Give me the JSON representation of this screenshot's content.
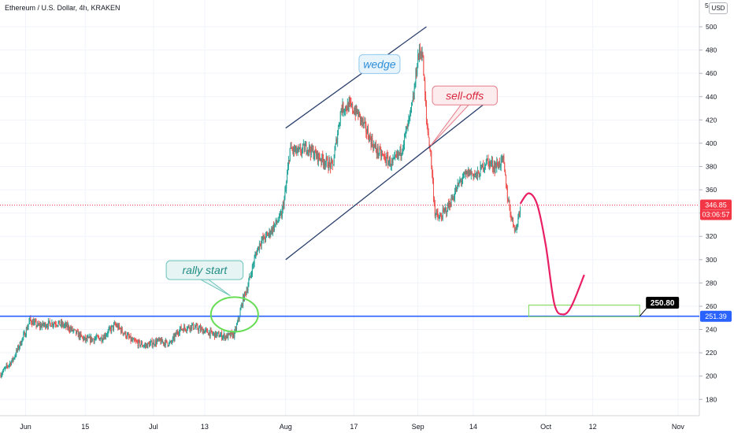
{
  "header": {
    "title": "Ethereum / U.S. Dollar, 4h, KRAKEN",
    "currency": "USD",
    "top_tick_fragment": "5"
  },
  "colors": {
    "up": "#26a69a",
    "down": "#ef5350",
    "support_line": "#2962ff",
    "wedge_lines": "#2a3f6b",
    "projection": "#e91e63",
    "target_box": "#7ed957",
    "circle": "#66dd55",
    "price_label_bg": "#f23645",
    "support_label_bg": "#2962ff",
    "target_label_bg": "#000000",
    "grid": "#f0f3fa"
  },
  "chart_data": {
    "type": "candlestick",
    "title": "Ethereum / U.S. Dollar, 4h, KRAKEN",
    "y_axis_ticks": [
      180,
      200,
      220,
      240,
      260,
      280,
      300,
      320,
      340,
      360,
      380,
      400,
      420,
      440,
      460,
      480,
      500
    ],
    "ylim": [
      166,
      523
    ],
    "x_axis": {
      "range": [
        "2020-05-26",
        "2020-11-06"
      ],
      "ticks": [
        {
          "date": "2020-06-01",
          "label": "Jun"
        },
        {
          "date": "2020-06-15",
          "label": "15"
        },
        {
          "date": "2020-07-01",
          "label": "Jul"
        },
        {
          "date": "2020-07-13",
          "label": "13"
        },
        {
          "date": "2020-08-01",
          "label": "Aug"
        },
        {
          "date": "2020-08-17",
          "label": "17"
        },
        {
          "date": "2020-09-01",
          "label": "Sep"
        },
        {
          "date": "2020-09-14",
          "label": "14"
        },
        {
          "date": "2020-10-01",
          "label": "Oct"
        },
        {
          "date": "2020-10-12",
          "label": "12"
        },
        {
          "date": "2020-11-01",
          "label": "Nov"
        }
      ]
    },
    "price_path": [
      [
        "2020-05-26",
        201
      ],
      [
        "2020-05-29",
        214
      ],
      [
        "2020-06-01",
        238
      ],
      [
        "2020-06-02",
        248
      ],
      [
        "2020-06-04",
        243
      ],
      [
        "2020-06-08",
        246
      ],
      [
        "2020-06-11",
        242
      ],
      [
        "2020-06-15",
        231
      ],
      [
        "2020-06-19",
        233
      ],
      [
        "2020-06-22",
        244
      ],
      [
        "2020-06-23",
        241
      ],
      [
        "2020-06-26",
        230
      ],
      [
        "2020-06-29",
        226
      ],
      [
        "2020-07-02",
        230
      ],
      [
        "2020-07-05",
        228
      ],
      [
        "2020-07-07",
        240
      ],
      [
        "2020-07-10",
        243
      ],
      [
        "2020-07-12",
        240
      ],
      [
        "2020-07-15",
        236
      ],
      [
        "2020-07-18",
        234
      ],
      [
        "2020-07-20",
        236
      ],
      [
        "2020-07-21",
        250
      ],
      [
        "2020-07-22",
        266
      ],
      [
        "2020-07-23",
        276
      ],
      [
        "2020-07-25",
        305
      ],
      [
        "2020-07-26",
        315
      ],
      [
        "2020-07-28",
        322
      ],
      [
        "2020-07-31",
        338
      ],
      [
        "2020-08-01",
        360
      ],
      [
        "2020-08-02",
        395
      ],
      [
        "2020-08-04",
        392
      ],
      [
        "2020-08-06",
        397
      ],
      [
        "2020-08-08",
        390
      ],
      [
        "2020-08-10",
        385
      ],
      [
        "2020-08-12",
        380
      ],
      [
        "2020-08-14",
        430
      ],
      [
        "2020-08-16",
        432
      ],
      [
        "2020-08-18",
        425
      ],
      [
        "2020-08-20",
        410
      ],
      [
        "2020-08-22",
        395
      ],
      [
        "2020-08-24",
        388
      ],
      [
        "2020-08-26",
        382
      ],
      [
        "2020-08-28",
        393
      ],
      [
        "2020-08-30",
        420
      ],
      [
        "2020-08-31",
        440
      ],
      [
        "2020-09-01",
        475
      ],
      [
        "2020-09-02",
        480
      ],
      [
        "2020-09-03",
        420
      ],
      [
        "2020-09-04",
        390
      ],
      [
        "2020-09-05",
        340
      ],
      [
        "2020-09-06",
        335
      ],
      [
        "2020-09-08",
        345
      ],
      [
        "2020-09-09",
        352
      ],
      [
        "2020-09-11",
        368
      ],
      [
        "2020-09-13",
        375
      ],
      [
        "2020-09-15",
        372
      ],
      [
        "2020-09-17",
        385
      ],
      [
        "2020-09-19",
        380
      ],
      [
        "2020-09-21",
        385
      ],
      [
        "2020-09-22",
        355
      ],
      [
        "2020-09-23",
        335
      ],
      [
        "2020-09-24",
        325
      ],
      [
        "2020-09-25",
        347
      ]
    ],
    "wedge_upper": [
      [
        "2020-08-01",
        413
      ],
      [
        "2020-09-03",
        500
      ]
    ],
    "wedge_lower": [
      [
        "2020-08-01",
        300
      ],
      [
        "2020-09-17",
        435
      ]
    ],
    "support_level": 251.39,
    "target_zone": {
      "from": "2020-09-27",
      "to": "2020-10-23",
      "low": 251,
      "high": 261
    },
    "projection_path": [
      [
        "2020-09-25",
        348
      ],
      [
        "2020-09-27",
        357
      ],
      [
        "2020-09-29",
        347
      ],
      [
        "2020-10-01",
        312
      ],
      [
        "2020-10-03",
        262
      ],
      [
        "2020-10-05",
        253
      ],
      [
        "2020-10-07",
        260
      ],
      [
        "2020-10-10",
        287
      ]
    ],
    "annotations": [
      {
        "text": "wedge",
        "at": [
          "2020-08-23",
          468
        ],
        "pointer": [
          "2020-08-24",
          460
        ]
      },
      {
        "text": "sell-offs",
        "at": [
          "2020-09-12",
          441
        ],
        "pointer": [
          "2020-09-04",
          398
        ]
      },
      {
        "text": "rally start",
        "at": [
          "2020-07-13",
          291
        ],
        "pointer": [
          "2020-07-19",
          269
        ]
      }
    ],
    "last_price": {
      "value": "346.85",
      "countdown": "03:06:57"
    },
    "support_label": "251.39",
    "target_label": "250.80"
  }
}
